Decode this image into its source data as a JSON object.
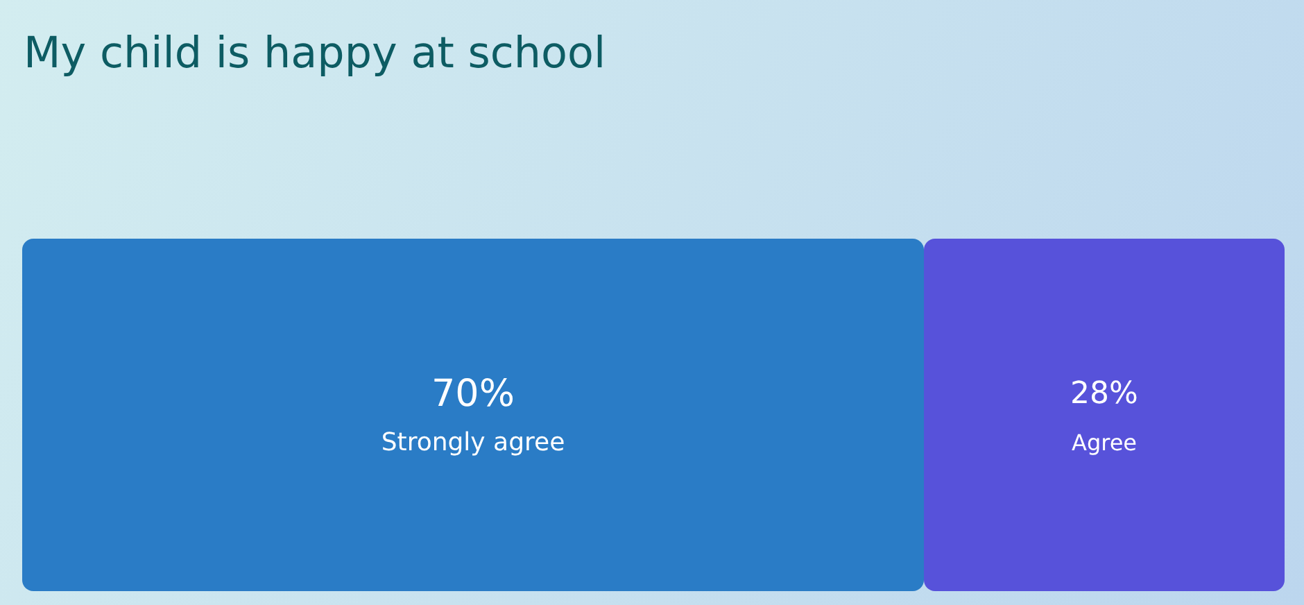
{
  "chart_data": {
    "type": "bar",
    "title": "My child is happy at school",
    "orientation": "horizontal",
    "stacked": true,
    "categories": [
      null
    ],
    "xlim": [
      0,
      98
    ],
    "tick_labels": false,
    "legend": false,
    "series": [
      {
        "name": "Strongly agree",
        "color": "#2a7cc6",
        "values": [
          70
        ],
        "value_labels": [
          "70%"
        ]
      },
      {
        "name": "Agree",
        "color": "#5752da",
        "values": [
          28
        ],
        "value_labels": [
          "28%"
        ]
      }
    ]
  }
}
